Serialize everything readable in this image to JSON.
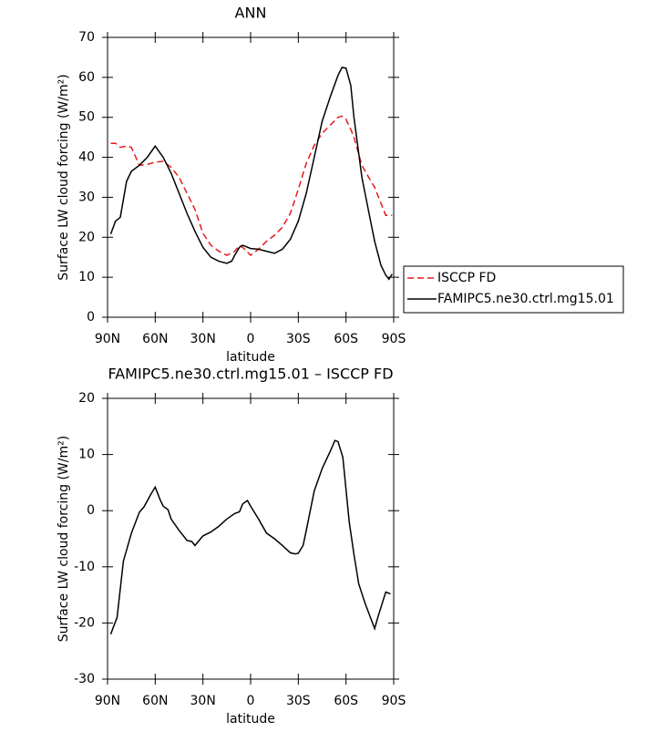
{
  "chart_data": [
    {
      "type": "line",
      "title": "ANN",
      "x_label": "latitude",
      "y_label": "Surface LW cloud forcing (W/m²)",
      "x": [
        88,
        85,
        82,
        78,
        75,
        70,
        65,
        60,
        55,
        50,
        45,
        40,
        35,
        30,
        25,
        20,
        15,
        12,
        10,
        7,
        5,
        0,
        -5,
        -10,
        -15,
        -20,
        -25,
        -30,
        -35,
        -40,
        -45,
        -50,
        -55,
        -57.5,
        -60,
        -63,
        -65,
        -70,
        -75,
        -78,
        -82,
        -85,
        -87,
        -89
      ],
      "series": [
        {
          "name": "ISCCP FD",
          "color": "#e41a1c",
          "dashed": true,
          "values": [
            43.5,
            43.5,
            42.5,
            42.8,
            42.5,
            38,
            38.2,
            38.8,
            39,
            37.5,
            35,
            31,
            27,
            21,
            18,
            16.5,
            15.5,
            16,
            16.5,
            18,
            17.5,
            15.5,
            17,
            19,
            20.5,
            22.5,
            26,
            32,
            38.5,
            43,
            46,
            48,
            50,
            50.3,
            49.5,
            47,
            45,
            38,
            34.5,
            32.5,
            28.5,
            25.5,
            25.5,
            25.5
          ]
        },
        {
          "name": "FAMIPC5.ne30.ctrl.mg15.01",
          "color": "#000000",
          "dashed": false,
          "values": [
            20.8,
            24,
            25,
            34,
            36.5,
            38,
            40,
            42.8,
            40,
            36,
            31,
            26,
            21.5,
            17.5,
            15,
            14,
            13.5,
            14,
            15.5,
            17.5,
            18,
            17.2,
            17,
            16.5,
            16,
            17,
            19.5,
            24,
            31,
            40,
            49,
            55,
            60.5,
            62.5,
            62.3,
            58,
            50,
            35,
            25,
            19,
            13,
            10.5,
            9.5,
            10.8
          ]
        }
      ],
      "xlim": [
        90,
        -90
      ],
      "xticks": [
        {
          "value": 90,
          "label": "90N"
        },
        {
          "value": 60,
          "label": "60N"
        },
        {
          "value": 30,
          "label": "30N"
        },
        0,
        {
          "value": -30,
          "label": "30S"
        },
        {
          "value": -60,
          "label": "60S"
        },
        {
          "value": -90,
          "label": "90S"
        }
      ],
      "ylim": [
        0,
        70
      ],
      "yticks": [
        0,
        10,
        20,
        30,
        40,
        50,
        60,
        70
      ],
      "legend": "outside-right"
    },
    {
      "type": "line",
      "title": "FAMIPC5.ne30.ctrl.mg15.01 – ISCCP FD",
      "x_label": "latitude",
      "y_label": "Surface LW cloud forcing (W/m²)",
      "x": [
        88,
        84,
        80,
        75,
        70,
        67,
        63,
        60,
        57,
        55,
        52,
        50,
        45,
        40,
        37,
        35,
        30,
        25,
        20,
        15,
        10,
        7,
        5,
        2,
        0,
        -5,
        -10,
        -15,
        -20,
        -25,
        -28,
        -30,
        -33,
        -35,
        -40,
        -45,
        -50,
        -53,
        -55,
        -58,
        -62,
        -65,
        -68,
        -72,
        -78,
        -80,
        -85,
        -88
      ],
      "series": [
        {
          "color": "#000000",
          "dashed": false,
          "values": [
            -22,
            -19,
            -9,
            -4,
            -0.3,
            0.7,
            2.8,
            4.2,
            2,
            0.8,
            0.2,
            -1.5,
            -3.5,
            -5.3,
            -5.5,
            -6.2,
            -4.5,
            -3.8,
            -2.8,
            -1.5,
            -0.5,
            -0.2,
            1.2,
            1.8,
            0.8,
            -1.5,
            -4,
            -5,
            -6.2,
            -7.5,
            -7.7,
            -7.6,
            -6.2,
            -3.5,
            3.5,
            7.5,
            10.5,
            12.5,
            12.3,
            9.5,
            -2,
            -7.8,
            -13,
            -16.5,
            -21,
            -19,
            -14.5,
            -14.8
          ]
        }
      ],
      "xlim": [
        90,
        -90
      ],
      "xticks": [
        {
          "value": 90,
          "label": "90N"
        },
        {
          "value": 60,
          "label": "60N"
        },
        {
          "value": 30,
          "label": "30N"
        },
        0,
        {
          "value": -30,
          "label": "30S"
        },
        {
          "value": -60,
          "label": "60S"
        },
        {
          "value": -90,
          "label": "90S"
        }
      ],
      "ylim": [
        -30,
        20
      ],
      "yticks": [
        -30,
        -20,
        -10,
        0,
        10,
        20
      ]
    }
  ]
}
